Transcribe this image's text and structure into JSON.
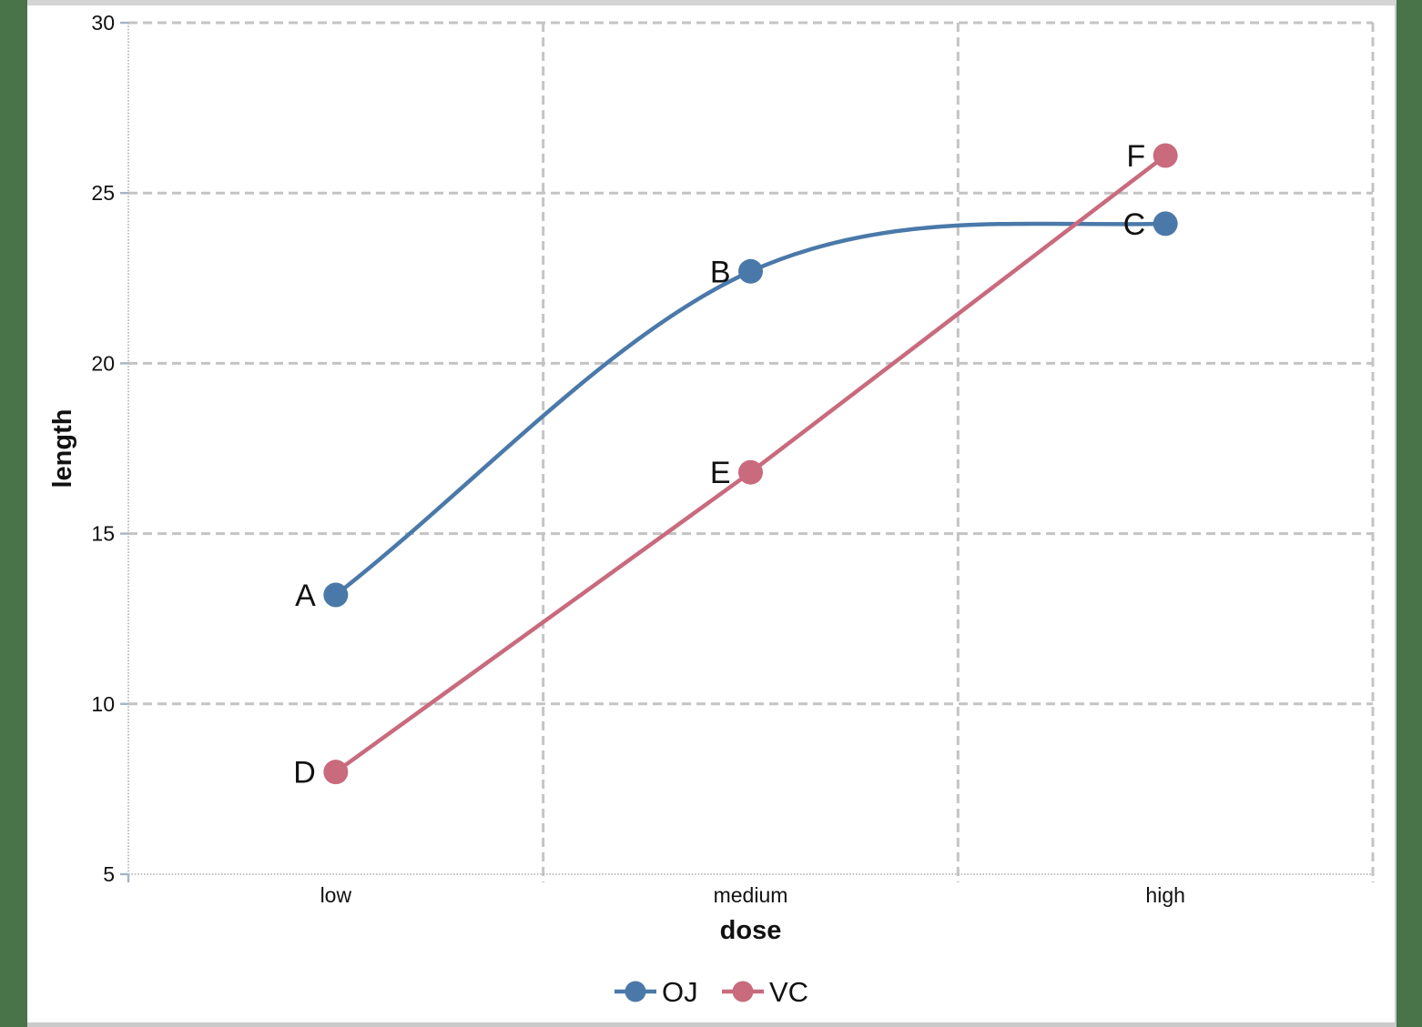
{
  "desktop": {
    "background_color": "#497349",
    "window_border_top_color": "#D4D4D4",
    "window_border_bottom_color": "#CACACA",
    "window_border_right_color": "#C9C9C9"
  },
  "chart_data": {
    "type": "line",
    "title": "",
    "categories": [
      "low",
      "medium",
      "high"
    ],
    "series": [
      {
        "name": "OJ",
        "color": "#4A79A9",
        "values": [
          13.2,
          22.7,
          24.1
        ],
        "point_labels": [
          "A",
          "B",
          "C"
        ],
        "smooth": true
      },
      {
        "name": "VC",
        "color": "#C96A7D",
        "values": [
          8.0,
          16.8,
          26.1
        ],
        "point_labels": [
          "D",
          "E",
          "F"
        ],
        "smooth": false
      }
    ],
    "xlabel": "dose",
    "ylabel": "length",
    "ylim": [
      5,
      30
    ],
    "yticks": [
      5,
      10,
      15,
      20,
      25,
      30
    ],
    "grid": {
      "horizontal": "dashed gray lines at each y tick",
      "vertical": "dashed gray lines at category midpoints and right plot edge",
      "color": "#C4C4C4"
    },
    "axis_color": "#B0B0B0",
    "tick_mark_color": "#A6B4C4",
    "text_color": "#111111",
    "legend": {
      "position": "bottom-center",
      "entries": [
        "OJ",
        "VC"
      ]
    }
  }
}
